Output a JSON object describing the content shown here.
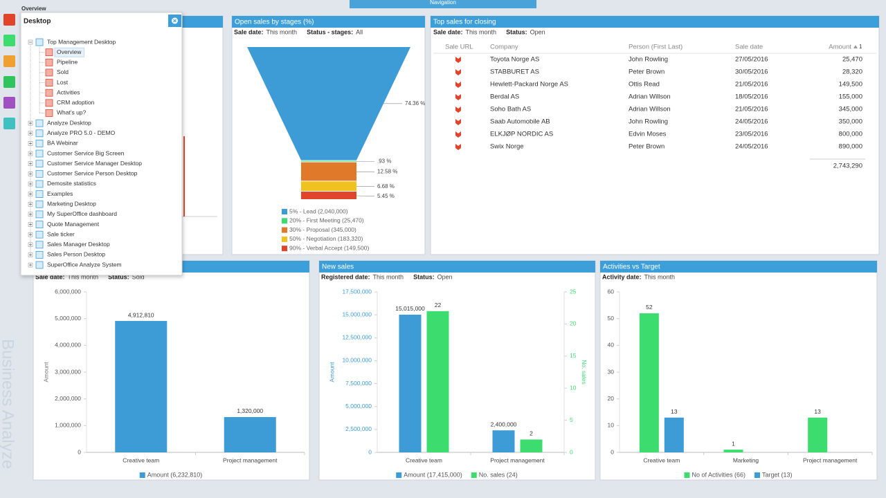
{
  "top_bar": {
    "overview": "Overview",
    "navigation": "Navigation"
  },
  "watermark": "Business Analyze",
  "desktop_popup": {
    "title": "Desktop",
    "items": [
      {
        "label": "Top Management Desktop",
        "children": [
          "Overview",
          "Pipeline",
          "Sold",
          "Lost",
          "Activities",
          "CRM adoption",
          "What's up?"
        ]
      },
      {
        "label": "Analyze Desktop"
      },
      {
        "label": "Analyze PRO 5.0 - DEMO"
      },
      {
        "label": "BA Webinar"
      },
      {
        "label": "Customer Service Big Screen"
      },
      {
        "label": "Customer Service Manager Desktop"
      },
      {
        "label": "Customer Service Person Desktop"
      },
      {
        "label": "Demosite statistics"
      },
      {
        "label": "Examples"
      },
      {
        "label": "Marketing Desktop"
      },
      {
        "label": "My SuperOffice dashboard"
      },
      {
        "label": "Quote Management"
      },
      {
        "label": "Sale ticker"
      },
      {
        "label": "Sales Manager Desktop"
      },
      {
        "label": "Sales Person Desktop"
      },
      {
        "label": "SuperOffice Analyze System"
      }
    ]
  },
  "panels": {
    "funnel": {
      "type": "funnel",
      "title": "Open sales by stages (%)",
      "filters": [
        {
          "label": "Sale date:",
          "value": "This month"
        },
        {
          "label": "Status - stages:",
          "value": "All"
        }
      ],
      "categories": [
        "5% - Lead (2,040,000)",
        "20% - First Meeting (25,470)",
        "30% - Proposal (345,000)",
        "50% - Negotiation (183,320)",
        "90% - Verbal Accept (149,500)"
      ],
      "values": [
        74.36,
        0.93,
        12.58,
        6.68,
        5.45
      ],
      "value_labels": [
        "74.36 %",
        ".93 %",
        "12.58 %",
        "6.68 %",
        "5.45 %"
      ],
      "colors": [
        "#3d9bd6",
        "#3ddc6f",
        "#e07a2a",
        "#efc21f",
        "#e0442a"
      ]
    },
    "top_sales": {
      "type": "table",
      "title": "Top sales for closing",
      "filters": [
        {
          "label": "Sale date:",
          "value": "This month"
        },
        {
          "label": "Status:",
          "value": "Open"
        }
      ],
      "columns": [
        "Sale URL",
        "Company",
        "Person (First Last)",
        "Sale date",
        "Amount"
      ],
      "sort_rank": "1",
      "rows": [
        [
          "Toyota Norge AS",
          "John Rowling",
          "27/05/2016",
          "25,470"
        ],
        [
          "STABBURET AS",
          "Peter Brown",
          "30/05/2016",
          "28,320"
        ],
        [
          "Hewlett-Packard Norge AS",
          "Ottis Read",
          "21/05/2016",
          "149,500"
        ],
        [
          "Berdal AS",
          "Adrian Willson",
          "18/05/2016",
          "155,000"
        ],
        [
          "Soho Bath AS",
          "Adrian Willson",
          "21/05/2016",
          "345,000"
        ],
        [
          "Saab Automobile AB",
          "John Rowling",
          "24/05/2016",
          "350,000"
        ],
        [
          "ELKJØP NORDIC AS",
          "Edvin Moses",
          "23/05/2016",
          "800,000"
        ],
        [
          "Swix Norge",
          "Peter Brown",
          "24/05/2016",
          "890,000"
        ]
      ],
      "total": "2,743,290"
    },
    "sold": {
      "type": "bar",
      "filters": [
        {
          "label": "Sale date:",
          "value": "This month"
        },
        {
          "label": "Status:",
          "value": "Sold"
        }
      ],
      "y_label": "Amount",
      "categories": [
        "Creative team",
        "Project management"
      ],
      "series": [
        {
          "name": "Amount (6,232,810)",
          "color": "#3d9bd6",
          "values": [
            4912810,
            1320000
          ],
          "value_labels": [
            "4,912,810",
            "1,320,000"
          ]
        }
      ],
      "ylim": [
        0,
        6000000
      ],
      "yticks": [
        0,
        {
          "value": 1000000,
          "label": "1,000,000"
        },
        {
          "value": 2000000,
          "label": "2,000,000"
        },
        {
          "value": 3000000,
          "label": "3,000,000"
        },
        {
          "value": 4000000,
          "label": "4,000,000"
        },
        {
          "value": 5000000,
          "label": "5,000,000"
        },
        {
          "value": 6000000,
          "label": "6,000,000"
        }
      ]
    },
    "new_sales": {
      "type": "bar",
      "title": "New sales",
      "filters": [
        {
          "label": "Registered date:",
          "value": "This month"
        },
        {
          "label": "Status:",
          "value": "Open"
        }
      ],
      "y_label": "Amount",
      "y2_label": "No. sales",
      "categories": [
        "Creative team",
        "Project management"
      ],
      "series": [
        {
          "name": "Amount (17,415,000)",
          "color": "#3d9bd6",
          "values": [
            15015000,
            2400000
          ],
          "value_labels": [
            "15,015,000",
            "2,400,000"
          ]
        },
        {
          "name": "No. sales (24)",
          "color": "#3ddc6f",
          "values": [
            22,
            2
          ],
          "axis": "y2"
        }
      ],
      "ylim": [
        0,
        17500000
      ],
      "yticks": [
        0,
        {
          "value": 2500000,
          "label": "2,500,000"
        },
        {
          "value": 5000000,
          "label": "5,000,000"
        },
        {
          "value": 7500000,
          "label": "7,500,000"
        },
        {
          "value": 10000000,
          "label": "10,000,000"
        },
        {
          "value": 12500000,
          "label": "12,500,000"
        },
        {
          "value": 15000000,
          "label": "15,000,000"
        },
        {
          "value": 17500000,
          "label": "17,500,000"
        }
      ],
      "y2lim": [
        0,
        25
      ],
      "y2ticks": [
        0,
        5,
        10,
        15,
        20,
        25
      ]
    },
    "activities": {
      "type": "bar",
      "title": "Activities vs Target",
      "filters": [
        {
          "label": "Activity date:",
          "value": "This month"
        }
      ],
      "categories": [
        "Creative team",
        "Marketing",
        "Project management"
      ],
      "series": [
        {
          "name": "No of Activities (66)",
          "color": "#3ddc6f",
          "values": [
            52,
            1,
            13
          ]
        },
        {
          "name": "Target (13)",
          "color": "#3d9bd6",
          "values": [
            13,
            null,
            null
          ]
        }
      ],
      "ylim": [
        0,
        60
      ],
      "yticks": [
        0,
        10,
        20,
        30,
        40,
        50,
        60
      ]
    }
  }
}
